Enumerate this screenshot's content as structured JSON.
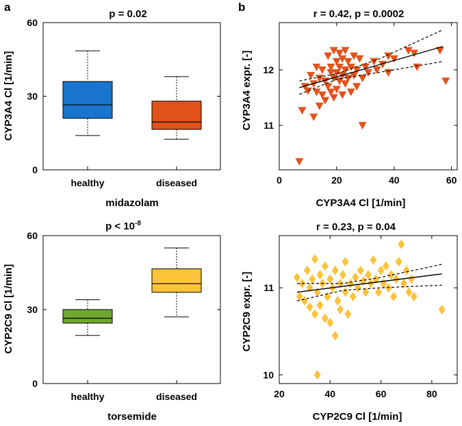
{
  "panel_labels": {
    "a": "a",
    "b": "b"
  },
  "colors": {
    "cyp3a4_box": "#1874cd",
    "cyp3a4_box_diseased": "#e2531b",
    "cyp2c9_box": "#70a82c",
    "cyp2c9_box_diseased": "#fcc33a",
    "scatter_top": "#e2531b",
    "scatter_bottom": "#fcc33a"
  },
  "chart_data": [
    {
      "id": "box-top",
      "type": "box",
      "title": "p = 0.02",
      "ylabel": "CYP3A4 Cl [1/min]",
      "xlabel": "midazolam",
      "ylim": [
        0,
        60
      ],
      "yticks": [
        0,
        30,
        60
      ],
      "categories": [
        "healthy",
        "diseased"
      ],
      "boxes": [
        {
          "name": "healthy",
          "min": 14,
          "q1": 21,
          "median": 26.5,
          "q3": 36,
          "max": 48.5
        },
        {
          "name": "diseased",
          "min": 12.5,
          "q1": 16.5,
          "median": 19.5,
          "q3": 28,
          "max": 38
        }
      ]
    },
    {
      "id": "box-bottom",
      "type": "box",
      "title_main": "p < 10",
      "title_sup": "-8",
      "ylabel": "CYP2C9 Cl [1/min]",
      "xlabel": "torsemide",
      "ylim": [
        0,
        60
      ],
      "yticks": [
        0,
        30,
        60
      ],
      "categories": [
        "healthy",
        "diseased"
      ],
      "boxes": [
        {
          "name": "healthy",
          "min": 19.5,
          "q1": 24.5,
          "median": 26.5,
          "q3": 30,
          "max": 34
        },
        {
          "name": "diseased",
          "min": 27,
          "q1": 37,
          "median": 40.5,
          "q3": 46.5,
          "max": 55
        }
      ]
    },
    {
      "id": "scatter-top",
      "type": "scatter",
      "marker": "triangle-down",
      "title": "r = 0.42, p = 0.0002",
      "xlabel": "CYP3A4 Cl [1/min]",
      "ylabel": "CYP3A4 expr. [-]",
      "xlim": [
        0,
        62
      ],
      "ylim": [
        10.2,
        12.85
      ],
      "xticks": [
        0,
        20,
        40,
        60
      ],
      "yticks": [
        11,
        12
      ],
      "fit": {
        "x": [
          7,
          57
        ],
        "y": [
          11.68,
          12.42
        ]
      },
      "ci_upper": [
        [
          7,
          11.8
        ],
        [
          20,
          11.93
        ],
        [
          35,
          12.2
        ],
        [
          57,
          12.72
        ]
      ],
      "ci_lower": [
        [
          7,
          11.56
        ],
        [
          20,
          11.83
        ],
        [
          40,
          12.0
        ],
        [
          57,
          12.15
        ]
      ],
      "points": [
        [
          7,
          10.35
        ],
        [
          8,
          11.27
        ],
        [
          9,
          11.7
        ],
        [
          10,
          11.62
        ],
        [
          11,
          11.9
        ],
        [
          12,
          11.75
        ],
        [
          12,
          11.15
        ],
        [
          13,
          11.6
        ],
        [
          13,
          12.05
        ],
        [
          14,
          11.85
        ],
        [
          14,
          11.35
        ],
        [
          15,
          11.55
        ],
        [
          15,
          12.0
        ],
        [
          16,
          11.8
        ],
        [
          16,
          11.45
        ],
        [
          17,
          12.25
        ],
        [
          17,
          11.7
        ],
        [
          18,
          11.95
        ],
        [
          18,
          12.05
        ],
        [
          18,
          11.6
        ],
        [
          19,
          12.35
        ],
        [
          19,
          11.85
        ],
        [
          19,
          11.5
        ],
        [
          20,
          12.15
        ],
        [
          20,
          11.95
        ],
        [
          20,
          11.65
        ],
        [
          21,
          12.3
        ],
        [
          21,
          12.05
        ],
        [
          21,
          11.8
        ],
        [
          22,
          12.2
        ],
        [
          22,
          11.9
        ],
        [
          22,
          11.55
        ],
        [
          23,
          12.35
        ],
        [
          23,
          12.0
        ],
        [
          23,
          11.75
        ],
        [
          24,
          12.15
        ],
        [
          24,
          11.85
        ],
        [
          25,
          12.05
        ],
        [
          25,
          11.6
        ],
        [
          26,
          12.25
        ],
        [
          26,
          11.9
        ],
        [
          27,
          12.0
        ],
        [
          27,
          11.7
        ],
        [
          28,
          12.2
        ],
        [
          29,
          11.0
        ],
        [
          29,
          11.85
        ],
        [
          30,
          12.05
        ],
        [
          31,
          11.95
        ],
        [
          33,
          12.15
        ],
        [
          34,
          12.0
        ],
        [
          36,
          12.1
        ],
        [
          38,
          12.25
        ],
        [
          38,
          11.95
        ],
        [
          40,
          12.2
        ],
        [
          45,
          12.35
        ],
        [
          47,
          12.3
        ],
        [
          48,
          12.05
        ],
        [
          56,
          12.35
        ],
        [
          58,
          11.8
        ]
      ]
    },
    {
      "id": "scatter-bottom",
      "type": "scatter",
      "marker": "diamond",
      "title": "r = 0.23, p = 0.04",
      "xlabel": "CYP2C9 Cl [1/min]",
      "ylabel": "CYP2C9 expr. [-]",
      "xlim": [
        20,
        90
      ],
      "ylim": [
        9.9,
        11.6
      ],
      "xticks": [
        20,
        40,
        60,
        80
      ],
      "yticks": [
        10,
        11
      ],
      "fit": {
        "x": [
          27,
          84
        ],
        "y": [
          10.95,
          11.16
        ]
      },
      "ci_upper": [
        [
          27,
          11.05
        ],
        [
          45,
          11.05
        ],
        [
          60,
          11.12
        ],
        [
          84,
          11.27
        ]
      ],
      "ci_lower": [
        [
          27,
          10.85
        ],
        [
          45,
          10.97
        ],
        [
          60,
          11.0
        ],
        [
          84,
          11.03
        ]
      ],
      "points": [
        [
          27,
          11.12
        ],
        [
          28,
          10.9
        ],
        [
          29,
          11.05
        ],
        [
          30,
          10.85
        ],
        [
          31,
          11.2
        ],
        [
          32,
          11.0
        ],
        [
          32,
          10.78
        ],
        [
          33,
          11.1
        ],
        [
          34,
          11.33
        ],
        [
          34,
          10.7
        ],
        [
          35,
          10.0
        ],
        [
          35,
          10.95
        ],
        [
          36,
          11.15
        ],
        [
          36,
          10.8
        ],
        [
          37,
          11.05
        ],
        [
          38,
          11.25
        ],
        [
          38,
          10.65
        ],
        [
          39,
          10.9
        ],
        [
          40,
          11.1
        ],
        [
          40,
          10.6
        ],
        [
          41,
          11.0
        ],
        [
          42,
          10.45
        ],
        [
          42,
          11.2
        ],
        [
          43,
          10.85
        ],
        [
          44,
          11.05
        ],
        [
          44,
          10.75
        ],
        [
          45,
          11.15
        ],
        [
          46,
          10.95
        ],
        [
          46,
          11.3
        ],
        [
          47,
          10.7
        ],
        [
          48,
          11.05
        ],
        [
          49,
          10.9
        ],
        [
          50,
          11.12
        ],
        [
          51,
          11.0
        ],
        [
          52,
          11.2
        ],
        [
          53,
          11.08
        ],
        [
          54,
          10.95
        ],
        [
          55,
          11.15
        ],
        [
          56,
          11.05
        ],
        [
          57,
          11.32
        ],
        [
          58,
          11.1
        ],
        [
          59,
          10.95
        ],
        [
          60,
          11.2
        ],
        [
          61,
          11.05
        ],
        [
          62,
          11.25
        ],
        [
          63,
          11.0
        ],
        [
          64,
          11.15
        ],
        [
          65,
          10.9
        ],
        [
          66,
          11.1
        ],
        [
          67,
          11.3
        ],
        [
          68,
          11.5
        ],
        [
          69,
          11.05
        ],
        [
          70,
          11.2
        ],
        [
          71,
          10.95
        ],
        [
          72,
          11.1
        ],
        [
          73,
          10.9
        ],
        [
          84,
          10.75
        ]
      ]
    }
  ]
}
